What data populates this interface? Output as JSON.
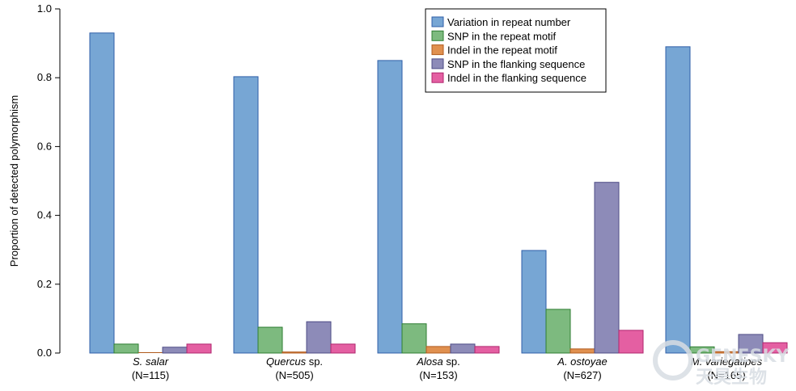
{
  "chart_data": {
    "type": "bar",
    "title": "",
    "xlabel": "",
    "ylabel": "Proportion of detected polymorphism",
    "ylim": [
      0,
      1.0
    ],
    "yticks": [
      "0.0",
      "0.2",
      "0.4",
      "0.6",
      "0.8",
      "1.0"
    ],
    "grid": false,
    "legend_position": "top-right",
    "categories": [
      {
        "name_italic": "S. salar",
        "name_plain": "",
        "n_label": "(N=115)"
      },
      {
        "name_italic": "Quercus",
        "name_plain": " sp.",
        "n_label": "(N=505)"
      },
      {
        "name_italic": "Alosa",
        "name_plain": " sp.",
        "n_label": "(N=153)"
      },
      {
        "name_italic": "A. ostoyae",
        "name_plain": "",
        "n_label": "(N=627)"
      },
      {
        "name_italic": "M. variegatipes",
        "name_plain": "",
        "n_label": "(N=165)"
      }
    ],
    "series": [
      {
        "name": "Variation in repeat number",
        "color": "#77a6d4",
        "stroke": "#2f5fa8",
        "values": [
          0.93,
          0.803,
          0.85,
          0.298,
          0.89
        ]
      },
      {
        "name": "SNP in the repeat motif",
        "color": "#7dba7f",
        "stroke": "#2e7d32",
        "values": [
          0.026,
          0.075,
          0.085,
          0.127,
          0.018
        ]
      },
      {
        "name": "Indel in the repeat motif",
        "color": "#e0904f",
        "stroke": "#b05a1c",
        "values": [
          0.0,
          0.003,
          0.019,
          0.012,
          0.004
        ]
      },
      {
        "name": "SNP in the flanking sequence",
        "color": "#8d8bb8",
        "stroke": "#4e4c86",
        "values": [
          0.017,
          0.091,
          0.026,
          0.496,
          0.054
        ]
      },
      {
        "name": "Indel in the flanking sequence",
        "color": "#e45fa2",
        "stroke": "#b0256e",
        "values": [
          0.026,
          0.026,
          0.019,
          0.066,
          0.03
        ]
      }
    ]
  },
  "watermark": {
    "text": "GENESKY",
    "text2": "天昊生物"
  }
}
